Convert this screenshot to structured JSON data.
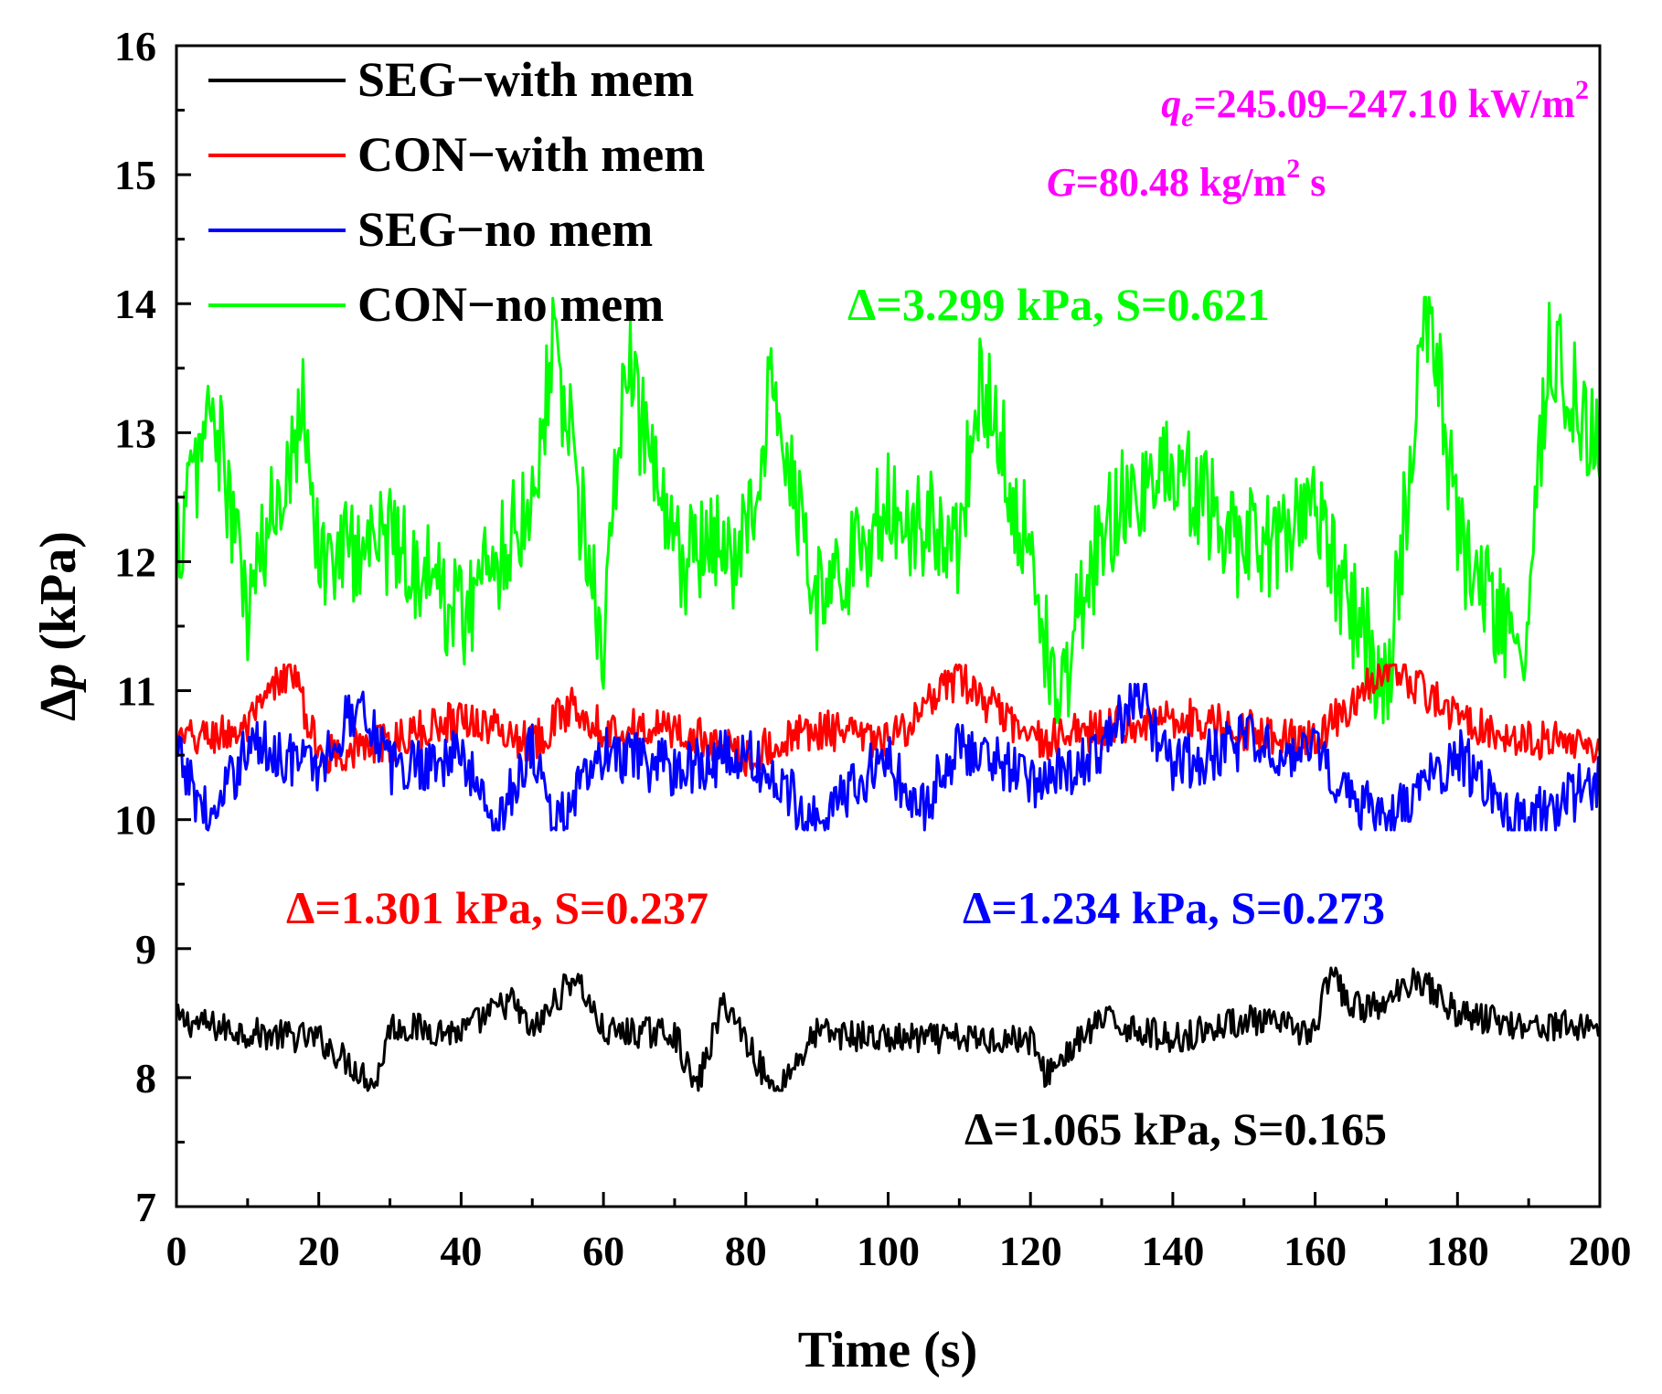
{
  "chart_data": {
    "type": "line",
    "title": "",
    "xlabel": "Time (s)",
    "ylabel_symbol": "Δ",
    "ylabel_var": "p",
    "ylabel_unit": " (kPa)",
    "xlim": [
      0,
      200
    ],
    "ylim": [
      7,
      16
    ],
    "xticks": [
      0,
      20,
      40,
      60,
      80,
      100,
      120,
      140,
      160,
      180,
      200
    ],
    "yticks": [
      7,
      8,
      9,
      10,
      11,
      12,
      13,
      14,
      15,
      16
    ],
    "grid": false,
    "legend_position": "top-left",
    "series": [
      {
        "name": "SEG−with mem",
        "color": "#000000",
        "mean": 8.35,
        "min": 7.9,
        "max": 8.85,
        "x": [
          0,
          10,
          20,
          28,
          30,
          40,
          47,
          50,
          56,
          60,
          70,
          73,
          77,
          80,
          84,
          90,
          100,
          110,
          120,
          122,
          130,
          140,
          150,
          160,
          162,
          165,
          170,
          174,
          180,
          190,
          200
        ],
        "y": [
          8.45,
          8.35,
          8.3,
          7.95,
          8.4,
          8.35,
          8.6,
          8.35,
          8.8,
          8.35,
          8.35,
          7.9,
          8.6,
          8.3,
          7.88,
          8.35,
          8.3,
          8.3,
          8.3,
          8.02,
          8.45,
          8.3,
          8.45,
          8.35,
          8.82,
          8.55,
          8.55,
          8.8,
          8.5,
          8.4,
          8.4
        ]
      },
      {
        "name": "CON−with mem",
        "color": "#ff0000",
        "mean": 10.6,
        "min": 10.2,
        "max": 11.2,
        "x": [
          0,
          10,
          16,
          20,
          30,
          40,
          50,
          56,
          60,
          70,
          80,
          90,
          100,
          110,
          120,
          130,
          140,
          150,
          160,
          170,
          180,
          190,
          200
        ],
        "y": [
          10.6,
          10.7,
          11.2,
          10.5,
          10.6,
          10.8,
          10.6,
          10.9,
          10.7,
          10.7,
          10.5,
          10.7,
          10.6,
          11.1,
          10.6,
          10.7,
          10.8,
          10.7,
          10.6,
          11.2,
          10.8,
          10.6,
          10.6
        ]
      },
      {
        "name": "SEG−no mem",
        "color": "#0000ff",
        "mean": 10.45,
        "min": 9.92,
        "max": 11.05,
        "x": [
          0,
          5,
          10,
          20,
          26,
          30,
          40,
          45,
          50,
          53,
          60,
          70,
          80,
          90,
          100,
          104,
          110,
          120,
          130,
          135,
          140,
          150,
          160,
          170,
          180,
          189,
          200
        ],
        "y": [
          10.5,
          9.95,
          10.6,
          10.4,
          10.95,
          10.4,
          10.5,
          9.95,
          10.6,
          9.95,
          10.5,
          10.4,
          10.5,
          10.0,
          10.5,
          10.0,
          10.6,
          10.3,
          10.5,
          11.0,
          10.4,
          10.6,
          10.5,
          9.95,
          10.5,
          9.95,
          10.3
        ]
      },
      {
        "name": "CON−no mem",
        "color": "#00ff00",
        "mean": 12.1,
        "min": 10.75,
        "max": 14.05,
        "x": [
          0,
          5,
          10,
          18,
          20,
          30,
          40,
          50,
          53,
          60,
          63,
          70,
          80,
          84,
          90,
          100,
          110,
          113,
          120,
          124,
          130,
          140,
          150,
          160,
          170,
          176,
          180,
          189,
          193,
          200
        ],
        "y": [
          12.1,
          13.25,
          11.6,
          13.3,
          12.0,
          12.2,
          11.6,
          12.5,
          13.75,
          11.3,
          13.6,
          12.0,
          12.1,
          13.5,
          11.7,
          12.4,
          12.2,
          13.5,
          12.0,
          10.9,
          12.3,
          12.7,
          12.1,
          12.3,
          11.0,
          14.05,
          12.2,
          11.2,
          13.65,
          12.9
        ]
      }
    ],
    "annotations": {
      "con_no_mem": "Δ=3.299 kPa, S=0.621",
      "con_with_mem": "Δ=1.301 kPa, S=0.237",
      "seg_no_mem": "Δ=1.234 kPa, S=0.273",
      "seg_with_mem": "Δ=1.065 kPa, S=0.165"
    },
    "conditions": {
      "qe_var": "q",
      "qe_sub": "e",
      "qe_value": "=245.09–247.10 kW/m",
      "qe_sup": "2",
      "g_var": "G",
      "g_value": "=80.48 kg/m",
      "g_sup": "2",
      "g_tail": " s"
    },
    "colors": {
      "annotation_conditions": "#ff00ff"
    }
  }
}
